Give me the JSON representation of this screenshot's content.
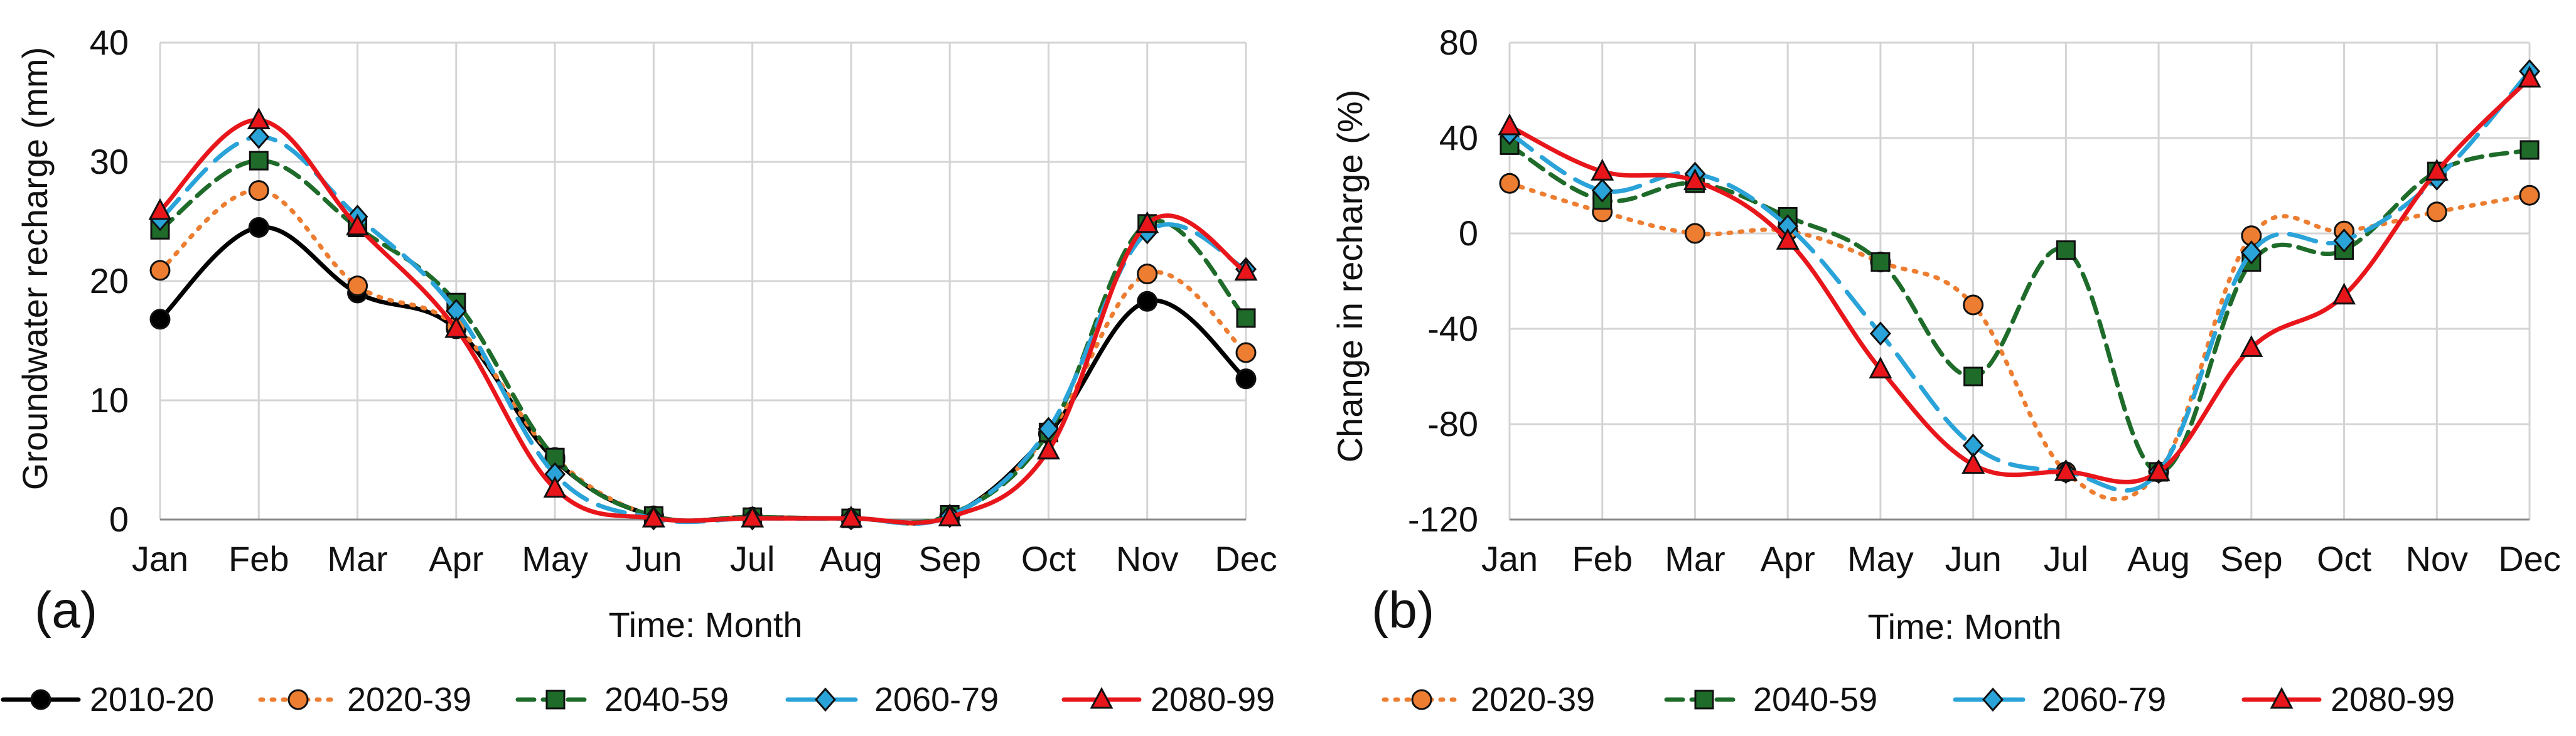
{
  "chart_data": [
    {
      "type": "line",
      "panel_label": "(a)",
      "categories": [
        "Jan",
        "Feb",
        "Mar",
        "Apr",
        "May",
        "Jun",
        "Jul",
        "Aug",
        "Sep",
        "Oct",
        "Nov",
        "Dec"
      ],
      "xlabel": "Time: Month",
      "ylabel": "Groundwater recharge (mm)",
      "ylim": [
        0,
        40
      ],
      "yticks": [
        0,
        10,
        20,
        30,
        40
      ],
      "grid": true,
      "legend_position": "bottom",
      "series": [
        {
          "name": "2010-20",
          "color": "#000000",
          "dash": "solid",
          "marker": "circle",
          "values": [
            16.8,
            24.5,
            19.0,
            16.0,
            5.0,
            0.3,
            0.2,
            0.1,
            0.3,
            7.2,
            18.3,
            11.8
          ]
        },
        {
          "name": "2020-39",
          "color": "#ED7D31",
          "dash": "dotted",
          "marker": "circle",
          "values": [
            20.9,
            27.6,
            19.6,
            16.2,
            5.2,
            0.3,
            0.2,
            0.1,
            0.3,
            7.2,
            20.6,
            14.0
          ]
        },
        {
          "name": "2040-59",
          "color": "#1E6B2A",
          "dash": "dashed",
          "marker": "square",
          "values": [
            24.3,
            30.1,
            24.5,
            18.2,
            5.2,
            0.3,
            0.2,
            0.1,
            0.4,
            7.3,
            24.8,
            16.9
          ]
        },
        {
          "name": "2060-79",
          "color": "#2AA3D9",
          "dash": "longdash",
          "marker": "diamond",
          "values": [
            25.2,
            32.1,
            25.4,
            17.5,
            3.8,
            0.1,
            0.1,
            0.1,
            0.3,
            7.6,
            24.1,
            21.0
          ]
        },
        {
          "name": "2080-99",
          "color": "#E8161B",
          "dash": "solid",
          "marker": "triangle",
          "values": [
            25.9,
            33.5,
            24.6,
            16.0,
            2.6,
            0.1,
            0.1,
            0.1,
            0.2,
            5.8,
            24.8,
            20.8
          ]
        }
      ]
    },
    {
      "type": "line",
      "panel_label": "(b)",
      "categories": [
        "Jan",
        "Feb",
        "Mar",
        "Apr",
        "May",
        "Jun",
        "Jul",
        "Aug",
        "Sep",
        "Oct",
        "Nov",
        "Dec"
      ],
      "xlabel": "Time: Month",
      "ylabel": "Change in recharge (%)",
      "ylim": [
        -120,
        80
      ],
      "yticks": [
        -120,
        -80,
        -40,
        0,
        40,
        80
      ],
      "grid": true,
      "legend_position": "bottom",
      "series": [
        {
          "name": "2020-39",
          "color": "#ED7D31",
          "dash": "dotted",
          "marker": "circle",
          "values": [
            21,
            9,
            0,
            1,
            -12,
            -30,
            -100,
            -100,
            -1,
            1,
            9,
            16
          ]
        },
        {
          "name": "2040-59",
          "color": "#1E6B2A",
          "dash": "dashed",
          "marker": "square",
          "values": [
            37,
            14,
            21,
            7,
            -12,
            -60,
            -7,
            -100,
            -12,
            -7,
            26,
            35
          ]
        },
        {
          "name": "2060-79",
          "color": "#2AA3D9",
          "dash": "longdash",
          "marker": "diamond",
          "values": [
            42,
            18,
            25,
            3,
            -42,
            -89,
            -100,
            -100,
            -8,
            -3,
            23,
            68
          ]
        },
        {
          "name": "2080-99",
          "color": "#E8161B",
          "dash": "solid",
          "marker": "triangle",
          "values": [
            45,
            26,
            22,
            -3,
            -57,
            -97,
            -100,
            -100,
            -48,
            -26,
            26,
            65
          ]
        }
      ]
    }
  ]
}
